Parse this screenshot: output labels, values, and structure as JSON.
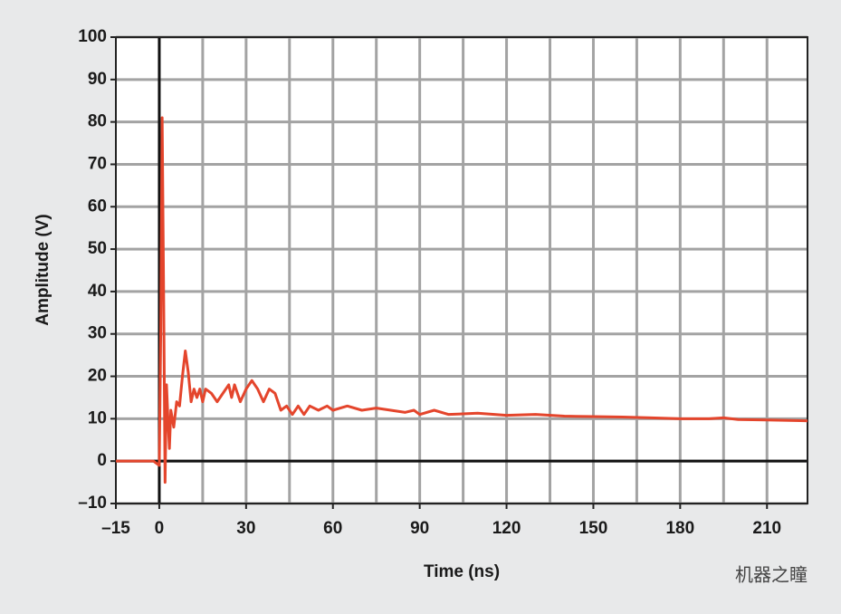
{
  "chart_data": {
    "type": "line",
    "x_label": "Time (ns)",
    "y_label": "Amplitude (V)",
    "watermark": "机器之瞳",
    "xlim": [
      -15,
      224
    ],
    "ylim": [
      -10,
      100
    ],
    "xticks": [
      {
        "value": -15,
        "label": "–15"
      },
      0,
      30,
      60,
      90,
      120,
      150,
      180,
      210
    ],
    "yticks": [
      {
        "value": -10,
        "label": "–10"
      },
      0,
      10,
      20,
      30,
      40,
      50,
      60,
      70,
      80,
      90,
      100
    ],
    "xgrid": [
      0,
      15,
      30,
      45,
      60,
      75,
      90,
      105,
      120,
      135,
      150,
      165,
      180,
      195,
      210
    ],
    "grid": true,
    "series": [
      {
        "color": "#e4452c",
        "x": [
          -15,
          -2,
          -1,
          0,
          0.5,
          1,
          1.5,
          2,
          2.5,
          3,
          3.5,
          4,
          5,
          6,
          7,
          8,
          9,
          10,
          11,
          12,
          13,
          14,
          15,
          16,
          18,
          20,
          22,
          24,
          25,
          26,
          28,
          30,
          32,
          34,
          36,
          38,
          40,
          42,
          44,
          46,
          48,
          50,
          52,
          55,
          58,
          60,
          65,
          70,
          75,
          80,
          85,
          88,
          90,
          95,
          100,
          110,
          120,
          130,
          140,
          150,
          160,
          170,
          180,
          190,
          195,
          200,
          210,
          224
        ],
        "values": [
          0,
          0,
          -0.5,
          -1,
          30,
          81,
          40,
          -5,
          18,
          10,
          3,
          12,
          8,
          14,
          13,
          20,
          26,
          21,
          14,
          17,
          15,
          17,
          14,
          17,
          16,
          14,
          16,
          18,
          15,
          18,
          14,
          17,
          19,
          17,
          14,
          17,
          16,
          12,
          13,
          11,
          13,
          11,
          13,
          12,
          13,
          12,
          13,
          12,
          12.5,
          12,
          11.5,
          12,
          11,
          12,
          11,
          11.3,
          10.8,
          11,
          10.6,
          10.5,
          10.4,
          10.2,
          10,
          10,
          10.2,
          9.8,
          9.7,
          9.5
        ]
      }
    ]
  }
}
